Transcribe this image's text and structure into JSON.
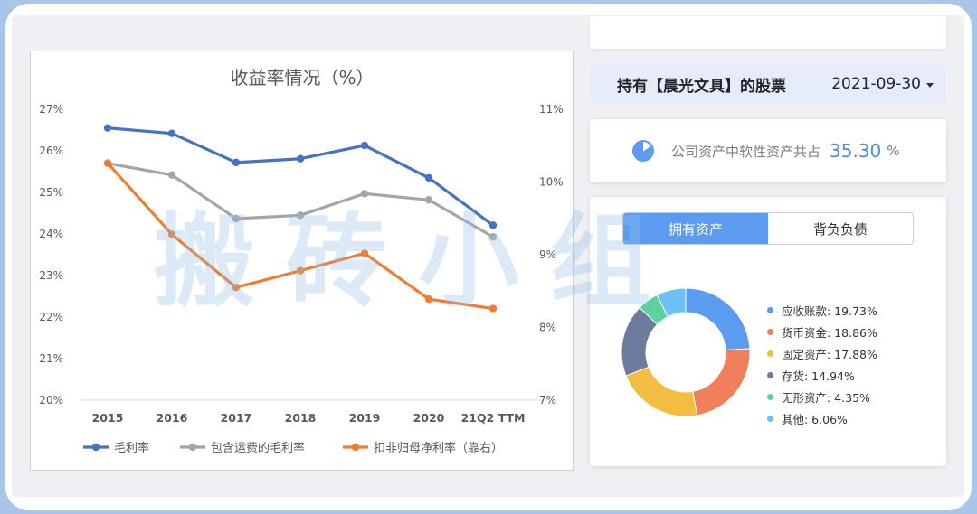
{
  "chart_data": {
    "type": "line",
    "title": "收益率情况（%）",
    "categories": [
      "2015",
      "2016",
      "2017",
      "2018",
      "2019",
      "2020",
      "21Q2 TTM"
    ],
    "y_left": {
      "lim": [
        20,
        27
      ],
      "ticks": [
        "20%",
        "21%",
        "22%",
        "23%",
        "24%",
        "25%",
        "26%",
        "27%"
      ]
    },
    "y_right": {
      "lim": [
        7,
        11
      ],
      "ticks": [
        "7%",
        "8%",
        "9%",
        "10%",
        "11%"
      ]
    },
    "series": [
      {
        "name": "毛利率",
        "axis": "left",
        "color": "#4472c4",
        "values": [
          26.55,
          26.42,
          25.72,
          25.81,
          26.13,
          25.35,
          24.21
        ]
      },
      {
        "name": "包含运费的毛利率",
        "axis": "left",
        "color": "#a5a5a5",
        "values": [
          25.7,
          25.42,
          24.37,
          24.45,
          24.97,
          24.82,
          23.93
        ]
      },
      {
        "name": "扣非归母净利率（靠右）",
        "axis": "right",
        "color": "#ed7d31",
        "values": [
          10.26,
          9.28,
          8.55,
          8.78,
          9.02,
          8.39,
          8.26
        ]
      }
    ],
    "legend_position": "bottom",
    "grid": false
  },
  "watermark": "搬砖小组",
  "holdings": {
    "title": "持有【晨光文具】的股票",
    "date": "2021-09-30"
  },
  "soft_assets": {
    "icon": "pie-chart-icon",
    "text": "公司资产中软性资产共占",
    "value": "35.30",
    "unit": "%"
  },
  "assets": {
    "tabs": [
      "拥有资产",
      "背负负债"
    ],
    "active_tab": 0,
    "items": [
      {
        "label": "应收账款: 19.73%",
        "pct": 19.73,
        "color": "#5b9bf0"
      },
      {
        "label": "货币资金: 18.86%",
        "pct": 18.86,
        "color": "#f07f5b"
      },
      {
        "label": "固定资产: 17.88%",
        "pct": 17.88,
        "color": "#f3bd42"
      },
      {
        "label": "存货: 14.94%",
        "pct": 14.94,
        "color": "#6f7b9c"
      },
      {
        "label": "无形资产: 4.35%",
        "pct": 4.35,
        "color": "#5ed29c"
      },
      {
        "label": "其他: 6.06%",
        "pct": 6.06,
        "color": "#6cc1f5"
      }
    ]
  }
}
